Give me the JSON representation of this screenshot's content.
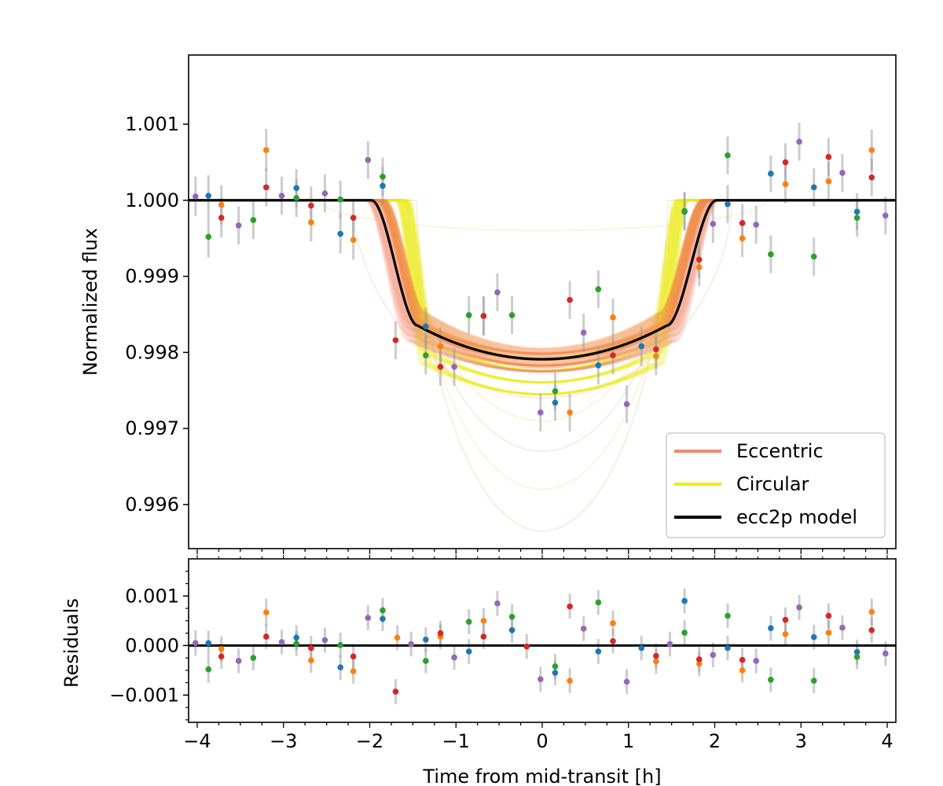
{
  "chart_data": [
    {
      "type": "line",
      "panel": "light curve",
      "ylabel": "Normalized flux",
      "xlim": [
        -4.1,
        4.1
      ],
      "ylim": [
        0.99542,
        1.00191
      ],
      "yticks": [
        0.996,
        0.997,
        0.998,
        0.999,
        1.0,
        1.001
      ],
      "ytick_labels": [
        "0.996",
        "0.997",
        "0.998",
        "0.999",
        "1.000",
        "1.001"
      ],
      "xticks": [
        -4,
        -3,
        -2,
        -1,
        0,
        1,
        2,
        3,
        4
      ],
      "grid": false,
      "legend": {
        "placement": "lower-right",
        "entries": [
          {
            "label": "Eccentric",
            "color": "#f08c70"
          },
          {
            "label": "Circular",
            "color": "#eded10"
          },
          {
            "label": "ecc2p model",
            "color": "#000000"
          }
        ]
      },
      "model": {
        "name": "ecc2p model",
        "baseline": 1.0,
        "ingress_start": -1.98,
        "ingress_end": -1.44,
        "egress_start": 1.44,
        "egress_end": 2.02,
        "depth_center": 0.99791,
        "depth_at_contact": 0.99835
      },
      "sample_bands": [
        {
          "name": "Circular",
          "color": "#eded10",
          "t1_range": [
            -1.7,
            -1.55
          ],
          "t4_range": [
            1.55,
            1.7
          ],
          "min_range": [
            0.99745,
            0.99805
          ]
        },
        {
          "name": "Eccentric",
          "color": "#f08c70",
          "t1_range": [
            -2.05,
            -1.85
          ],
          "t4_range": [
            1.85,
            2.05
          ],
          "min_range": [
            0.99775,
            0.99805
          ]
        }
      ],
      "faint_curves": [
        {
          "t1": -1.45,
          "t4": 1.45,
          "min": 0.99565
        },
        {
          "t1": -1.5,
          "t4": 1.5,
          "min": 0.9962
        },
        {
          "t1": -1.55,
          "t4": 1.55,
          "min": 0.9967
        },
        {
          "t1": -1.6,
          "t4": 1.6,
          "min": 0.9971
        },
        {
          "t1": -2.2,
          "t4": 2.2,
          "min": 0.9974
        },
        {
          "t1": -2.6,
          "t4": 2.6,
          "min": 0.9996
        }
      ],
      "series": [
        {
          "name": "blue",
          "color": "#1f77b4",
          "points": [
            [
              -3.87,
              1.00006,
              0.00027
            ],
            [
              -2.85,
              1.00016,
              0.00025
            ],
            [
              -2.34,
              0.99956,
              0.00026
            ],
            [
              -1.85,
              1.00019,
              0.00025
            ],
            [
              -1.35,
              0.99834,
              0.00025
            ],
            [
              0.15,
              0.99734,
              0.00024
            ],
            [
              0.65,
              0.99783,
              0.00025
            ],
            [
              1.15,
              0.99808,
              0.00026
            ],
            [
              1.65,
              0.99985,
              0.00025
            ],
            [
              2.15,
              0.99995,
              0.00025
            ],
            [
              2.65,
              1.00035,
              0.00024
            ],
            [
              3.15,
              1.00017,
              0.00025
            ],
            [
              3.65,
              0.99985,
              0.00024
            ]
          ]
        },
        {
          "name": "orange",
          "color": "#ff7f0e",
          "points": [
            [
              -3.72,
              0.99994,
              0.00026
            ],
            [
              -3.2,
              1.00066,
              0.00028
            ],
            [
              -2.68,
              0.99971,
              0.00025
            ],
            [
              -2.19,
              0.99948,
              0.00026
            ],
            [
              -1.18,
              0.99808,
              0.00025
            ],
            [
              -0.68,
              0.99848,
              0.00026
            ],
            [
              0.32,
              0.99721,
              0.00025
            ],
            [
              0.82,
              0.99846,
              0.00025
            ],
            [
              1.32,
              0.99795,
              0.00025
            ],
            [
              1.82,
              0.99912,
              0.00025
            ],
            [
              2.32,
              0.9995,
              0.00025
            ],
            [
              2.82,
              1.00021,
              0.00025
            ],
            [
              3.32,
              1.00025,
              0.00025
            ],
            [
              3.82,
              1.00066,
              0.00027
            ]
          ]
        },
        {
          "name": "green",
          "color": "#2ca02c",
          "points": [
            [
              -3.87,
              0.99952,
              0.00027
            ],
            [
              -3.35,
              0.99974,
              0.00025
            ],
            [
              -2.85,
              1.00003,
              0.00025
            ],
            [
              -2.34,
              1.00001,
              0.00025
            ],
            [
              -1.85,
              1.00031,
              0.00025
            ],
            [
              -1.35,
              0.99796,
              0.00025
            ],
            [
              -0.85,
              0.99849,
              0.00025
            ],
            [
              -0.35,
              0.99849,
              0.00025
            ],
            [
              0.15,
              0.99749,
              0.00025
            ],
            [
              0.65,
              0.99883,
              0.00025
            ],
            [
              1.65,
              0.99986,
              0.00025
            ],
            [
              2.15,
              1.00059,
              0.00025
            ],
            [
              2.65,
              0.99929,
              0.00025
            ],
            [
              3.15,
              0.99926,
              0.00025
            ],
            [
              3.65,
              0.99977,
              0.00025
            ]
          ]
        },
        {
          "name": "red",
          "color": "#d62728",
          "points": [
            [
              -3.72,
              0.99977,
              0.00026
            ],
            [
              -3.2,
              1.00017,
              0.00025
            ],
            [
              -2.68,
              0.99993,
              0.00025
            ],
            [
              -2.19,
              0.99977,
              0.00025
            ],
            [
              -1.7,
              0.99816,
              0.00025
            ],
            [
              -1.18,
              0.99781,
              0.00025
            ],
            [
              -0.68,
              0.99848,
              0.00025
            ],
            [
              0.32,
              0.99869,
              0.00025
            ],
            [
              0.82,
              0.99796,
              0.00025
            ],
            [
              1.32,
              0.99804,
              0.00025
            ],
            [
              1.82,
              0.99922,
              0.00025
            ],
            [
              2.32,
              0.9997,
              0.00025
            ],
            [
              2.82,
              1.0005,
              0.00025
            ],
            [
              3.32,
              1.00057,
              0.00025
            ],
            [
              3.82,
              1.0003,
              0.00025
            ]
          ]
        },
        {
          "name": "purple",
          "color": "#9467bd",
          "points": [
            [
              -4.02,
              1.00005,
              0.00026
            ],
            [
              -3.52,
              0.99967,
              0.00025
            ],
            [
              -3.02,
              1.00006,
              0.00025
            ],
            [
              -2.52,
              1.00009,
              0.00025
            ],
            [
              -2.02,
              1.00053,
              0.00025
            ],
            [
              -1.02,
              0.99781,
              0.00025
            ],
            [
              -0.52,
              0.99879,
              0.00025
            ],
            [
              -0.02,
              0.99721,
              0.00025
            ],
            [
              0.48,
              0.99826,
              0.00025
            ],
            [
              0.98,
              0.99732,
              0.00025
            ],
            [
              1.98,
              0.99969,
              0.00025
            ],
            [
              2.48,
              0.99968,
              0.00025
            ],
            [
              2.98,
              1.00077,
              0.00025
            ],
            [
              3.48,
              1.00036,
              0.00025
            ],
            [
              3.98,
              0.9998,
              0.00025
            ]
          ]
        }
      ]
    },
    {
      "type": "scatter",
      "panel": "residuals",
      "ylabel": "Residuals",
      "xlabel": "Time from mid-transit [h]",
      "xlim": [
        -4.1,
        4.1
      ],
      "ylim": [
        -0.00155,
        0.00175
      ],
      "yticks": [
        -0.001,
        0.0,
        0.001
      ],
      "ytick_labels": [
        "−0.001",
        "0.000",
        "0.001"
      ],
      "xticks": [
        -4,
        -3,
        -2,
        -1,
        0,
        1,
        2,
        3,
        4
      ],
      "xtick_labels": [
        "−4",
        "−3",
        "−2",
        "−1",
        "0",
        "1",
        "2",
        "3",
        "4"
      ],
      "zero_line": 0.0,
      "series": [
        {
          "name": "blue",
          "color": "#1f77b4",
          "points": [
            [
              -3.87,
              5e-05,
              0.00025
            ],
            [
              -2.85,
              0.00016,
              0.00025
            ],
            [
              -2.34,
              -0.00044,
              0.00025
            ],
            [
              -1.85,
              0.00054,
              0.00025
            ],
            [
              -1.35,
              0.00012,
              0.00025
            ],
            [
              -0.85,
              -0.00012,
              0.00025
            ],
            [
              -0.35,
              0.00031,
              0.00025
            ],
            [
              0.15,
              -0.00055,
              0.00025
            ],
            [
              0.65,
              -0.00012,
              0.00025
            ],
            [
              1.15,
              -5e-05,
              0.00025
            ],
            [
              1.65,
              0.0009,
              0.00025
            ],
            [
              2.15,
              -5e-05,
              0.00025
            ],
            [
              2.65,
              0.00035,
              0.00025
            ],
            [
              3.15,
              0.00017,
              0.00025
            ],
            [
              3.65,
              -0.00013,
              0.00025
            ]
          ]
        },
        {
          "name": "orange",
          "color": "#ff7f0e",
          "points": [
            [
              -3.72,
              -7e-05,
              0.00025
            ],
            [
              -3.2,
              0.00067,
              0.00028
            ],
            [
              -2.68,
              -0.0003,
              0.00025
            ],
            [
              -2.19,
              -0.00052,
              0.00025
            ],
            [
              -1.68,
              0.00016,
              0.00025
            ],
            [
              -1.18,
              0.00018,
              0.00025
            ],
            [
              -0.68,
              0.0005,
              0.00025
            ],
            [
              0.32,
              -0.00071,
              0.00025
            ],
            [
              0.82,
              0.00045,
              0.00025
            ],
            [
              1.32,
              -0.00032,
              0.00025
            ],
            [
              1.82,
              -0.00037,
              0.00025
            ],
            [
              2.32,
              -0.0005,
              0.00025
            ],
            [
              2.82,
              0.00023,
              0.00025
            ],
            [
              3.32,
              0.00026,
              0.00025
            ],
            [
              3.82,
              0.00068,
              0.00027
            ]
          ]
        },
        {
          "name": "green",
          "color": "#2ca02c",
          "points": [
            [
              -3.87,
              -0.00048,
              0.00027
            ],
            [
              -3.35,
              -0.00025,
              0.00025
            ],
            [
              -2.85,
              4e-05,
              0.00025
            ],
            [
              -2.34,
              1e-05,
              0.00025
            ],
            [
              -1.85,
              0.00071,
              0.00025
            ],
            [
              -1.35,
              -0.00031,
              0.00025
            ],
            [
              -0.85,
              0.00048,
              0.00025
            ],
            [
              -0.35,
              0.00058,
              0.00025
            ],
            [
              0.15,
              -0.00042,
              0.00025
            ],
            [
              0.65,
              0.00087,
              0.00025
            ],
            [
              1.65,
              0.00026,
              0.00025
            ],
            [
              2.15,
              0.0006,
              0.00025
            ],
            [
              2.65,
              -0.00069,
              0.00025
            ],
            [
              3.15,
              -0.00071,
              0.00025
            ],
            [
              3.65,
              -0.00023,
              0.00025
            ]
          ]
        },
        {
          "name": "red",
          "color": "#d62728",
          "points": [
            [
              -3.72,
              -0.00022,
              0.00025
            ],
            [
              -3.2,
              0.00018,
              0.00025
            ],
            [
              -2.68,
              -5e-05,
              0.00025
            ],
            [
              -2.19,
              -0.00022,
              0.00025
            ],
            [
              -1.7,
              -0.00093,
              0.00025
            ],
            [
              -1.18,
              0.00025,
              0.00025
            ],
            [
              -0.68,
              0.00018,
              0.00025
            ],
            [
              -0.18,
              -2e-05,
              0.00025
            ],
            [
              0.32,
              0.00079,
              0.00025
            ],
            [
              0.82,
              9e-05,
              0.00025
            ],
            [
              1.32,
              -0.00021,
              0.00025
            ],
            [
              1.82,
              -0.00028,
              0.00025
            ],
            [
              2.32,
              -0.00029,
              0.00025
            ],
            [
              2.82,
              0.00052,
              0.00025
            ],
            [
              3.32,
              0.0006,
              0.00025
            ],
            [
              3.82,
              0.00031,
              0.00025
            ]
          ]
        },
        {
          "name": "purple",
          "color": "#9467bd",
          "points": [
            [
              -4.02,
              5e-05,
              0.00026
            ],
            [
              -3.52,
              -0.00031,
              0.00025
            ],
            [
              -3.02,
              7e-05,
              0.00025
            ],
            [
              -2.52,
              0.00011,
              0.00025
            ],
            [
              -2.02,
              0.00056,
              0.00025
            ],
            [
              -1.52,
              3e-05,
              0.00025
            ],
            [
              -1.02,
              -0.00024,
              0.00025
            ],
            [
              -0.52,
              0.00085,
              0.00025
            ],
            [
              -0.02,
              -0.00068,
              0.00025
            ],
            [
              0.48,
              0.00034,
              0.00025
            ],
            [
              0.98,
              -0.00073,
              0.00025
            ],
            [
              1.48,
              3e-05,
              0.00025
            ],
            [
              1.98,
              -0.00019,
              0.00025
            ],
            [
              2.48,
              -0.00031,
              0.00025
            ],
            [
              2.98,
              0.00077,
              0.00025
            ],
            [
              3.48,
              0.00036,
              0.00025
            ],
            [
              3.98,
              -0.00016,
              0.00025
            ]
          ]
        }
      ]
    }
  ]
}
